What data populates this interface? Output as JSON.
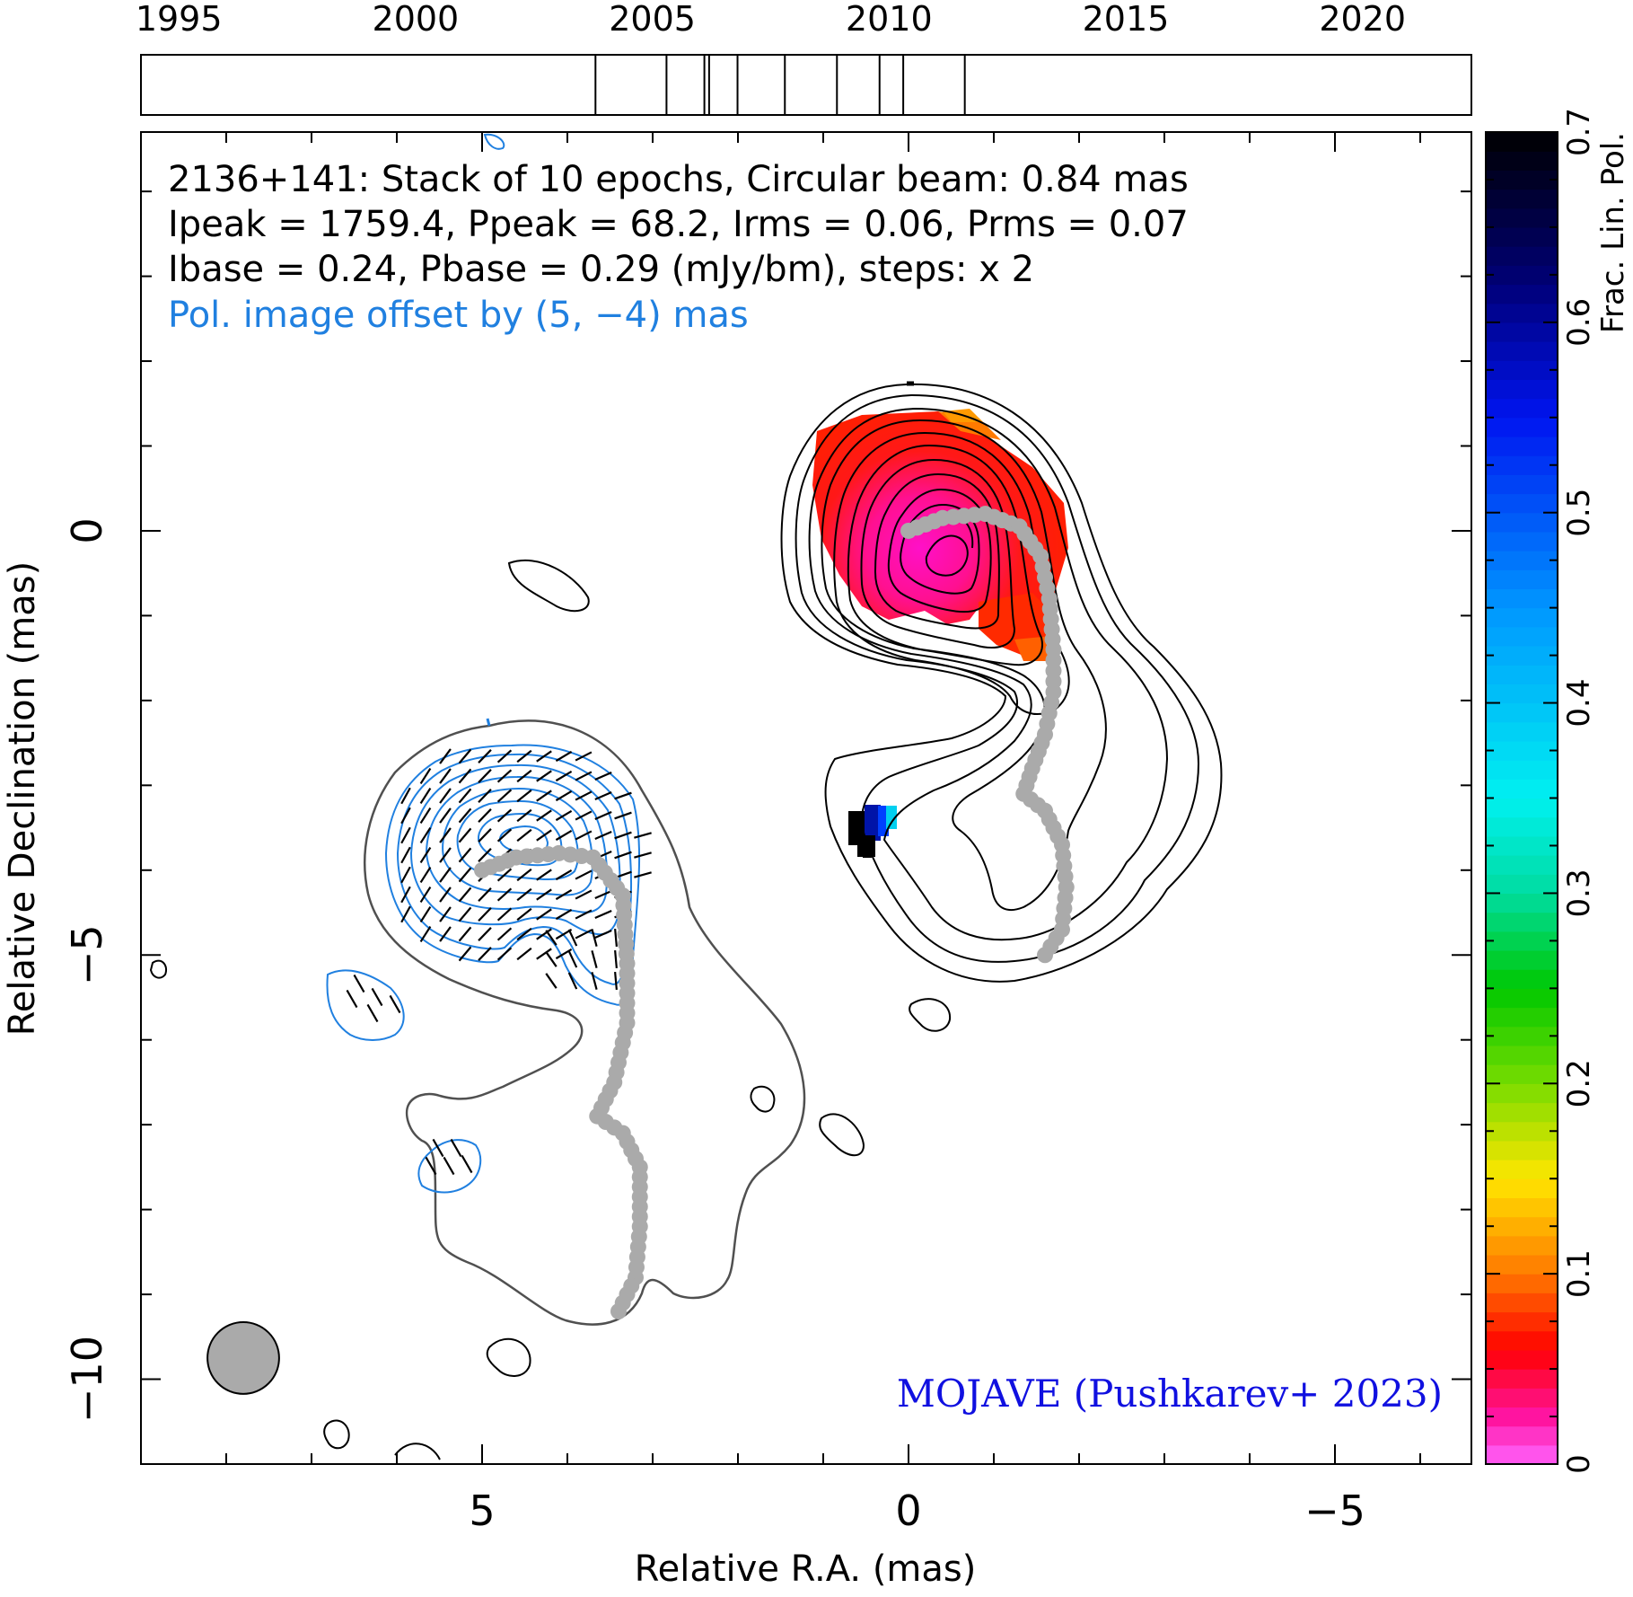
{
  "chart_data": [
    {
      "type": "timeline",
      "xlim": [
        1994.2,
        2022.3
      ],
      "tick_labels": [
        "1995",
        "2000",
        "2005",
        "2010",
        "2015",
        "2020"
      ],
      "tick_values": [
        1995,
        2000,
        2005,
        2010,
        2015,
        2020
      ],
      "epochs": [
        2003.8,
        2005.3,
        2006.1,
        2006.2,
        2006.8,
        2007.8,
        2008.9,
        2009.8,
        2010.3,
        2011.6
      ]
    },
    {
      "type": "contour-image",
      "header": {
        "line1": "2136+141: Stack of 10 epochs, Circular beam: 0.84 mas",
        "line2": "Ipeak = 1759.4, Ppeak = 68.2, Irms = 0.06, Prms = 0.07",
        "line3": "Ibase = 0.24, Pbase = 0.29 (mJy/bm), steps: x 2",
        "line4": "Pol. image offset by (5, −4) mas"
      },
      "xlabel": "Relative R.A. (mas)",
      "ylabel": "Relative Declination (mas)",
      "xlim": [
        9.0,
        -6.6
      ],
      "ylim": [
        -11.0,
        4.7
      ],
      "x_ticks": [
        5,
        0,
        -5
      ],
      "x_tick_labels": [
        "5",
        "0",
        "−5"
      ],
      "y_ticks": [
        0,
        -5,
        -10
      ],
      "y_tick_labels": [
        "0",
        "−5",
        "−10"
      ],
      "beam_diameter_mas": 0.84,
      "beam_center": [
        7.8,
        -9.75
      ],
      "ridge_line": [
        [
          0.0,
          0.0
        ],
        [
          -0.4,
          0.15
        ],
        [
          -0.9,
          0.2
        ],
        [
          -1.3,
          0.05
        ],
        [
          -1.55,
          -0.3
        ],
        [
          -1.65,
          -0.8
        ],
        [
          -1.7,
          -1.4
        ],
        [
          -1.7,
          -1.9
        ],
        [
          -1.6,
          -2.4
        ],
        [
          -1.45,
          -2.8
        ],
        [
          -1.35,
          -3.1
        ],
        [
          -1.6,
          -3.3
        ],
        [
          -1.8,
          -3.7
        ],
        [
          -1.85,
          -4.2
        ],
        [
          -1.8,
          -4.7
        ],
        [
          -1.6,
          -5.0
        ]
      ],
      "pol_ridge_line": [
        [
          5.0,
          -4.0
        ],
        [
          4.6,
          -3.85
        ],
        [
          4.1,
          -3.8
        ],
        [
          3.7,
          -3.85
        ],
        [
          3.35,
          -4.3
        ],
        [
          3.3,
          -5.1
        ],
        [
          3.3,
          -5.8
        ],
        [
          3.45,
          -6.5
        ],
        [
          3.65,
          -6.9
        ],
        [
          3.35,
          -7.1
        ],
        [
          3.15,
          -7.5
        ],
        [
          3.15,
          -8.2
        ],
        [
          3.2,
          -8.8
        ],
        [
          3.4,
          -9.2
        ]
      ],
      "colorbar": {
        "label": "Frac. Lin. Pol.",
        "range": [
          0,
          0.7
        ],
        "tick_values": [
          0,
          0.1,
          0.2,
          0.3,
          0.4,
          0.5,
          0.6,
          0.7
        ],
        "tick_labels": [
          "0",
          "0.1",
          "0.2",
          "0.3",
          "0.4",
          "0.5",
          "0.6",
          "0.7"
        ]
      },
      "credit": "MOJAVE (Pushkarev+ 2023)",
      "colors": {
        "stokes_i_contours": "#000000",
        "pol_contours": "#2080e0",
        "pol_outer_contour": "#505050",
        "ridge": "#aaaaaa",
        "beam": "#aaaaaa",
        "pol_offset_text": "#2080e0",
        "credit_text": "#1010e0"
      }
    }
  ]
}
